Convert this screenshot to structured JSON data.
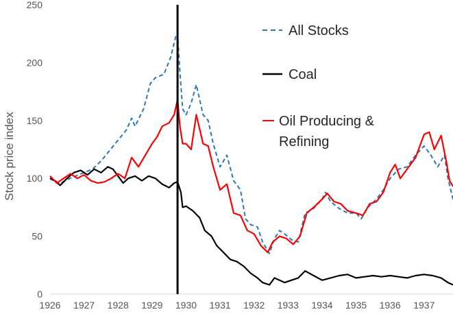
{
  "chart_data": {
    "type": "line",
    "ylabel": "Stock price index",
    "xlabel": "",
    "xlim": [
      1926,
      1937.85
    ],
    "ylim": [
      0,
      250
    ],
    "x_ticks": [
      "1926",
      "1927",
      "1928",
      "1929",
      "1930",
      "1931",
      "1932",
      "1933",
      "1934",
      "1935",
      "1936",
      "1937"
    ],
    "y_ticks": [
      "0",
      "50",
      "100",
      "150",
      "200",
      "250"
    ],
    "grid": false,
    "legend_position": "top-right",
    "vertical_marker_x": 1929.75,
    "series": [
      {
        "name": "All Stocks",
        "color": "#2e75b6",
        "dash": "dashed",
        "points": [
          [
            1926,
            100
          ],
          [
            1926.25,
            95
          ],
          [
            1926.5,
            99
          ],
          [
            1926.75,
            102
          ],
          [
            1927,
            105
          ],
          [
            1927.25,
            108
          ],
          [
            1927.5,
            115
          ],
          [
            1927.75,
            124
          ],
          [
            1928,
            133
          ],
          [
            1928.25,
            142
          ],
          [
            1928.4,
            152
          ],
          [
            1928.5,
            145
          ],
          [
            1928.75,
            160
          ],
          [
            1928.95,
            182
          ],
          [
            1929.1,
            187
          ],
          [
            1929.35,
            190
          ],
          [
            1929.55,
            205
          ],
          [
            1929.7,
            223
          ],
          [
            1929.75,
            225
          ],
          [
            1929.82,
            192
          ],
          [
            1929.9,
            160
          ],
          [
            1930,
            155
          ],
          [
            1930.15,
            165
          ],
          [
            1930.3,
            181
          ],
          [
            1930.5,
            155
          ],
          [
            1930.65,
            150
          ],
          [
            1930.8,
            130
          ],
          [
            1931,
            110
          ],
          [
            1931.2,
            120
          ],
          [
            1931.4,
            98
          ],
          [
            1931.6,
            90
          ],
          [
            1931.75,
            65
          ],
          [
            1931.9,
            60
          ],
          [
            1932.1,
            58
          ],
          [
            1932.25,
            45
          ],
          [
            1932.45,
            35
          ],
          [
            1932.6,
            48
          ],
          [
            1932.75,
            55
          ],
          [
            1932.9,
            52
          ],
          [
            1933.1,
            47
          ],
          [
            1933.3,
            45
          ],
          [
            1933.5,
            70
          ],
          [
            1933.75,
            74
          ],
          [
            1934,
            82
          ],
          [
            1934.1,
            88
          ],
          [
            1934.25,
            80
          ],
          [
            1934.5,
            74
          ],
          [
            1934.75,
            70
          ],
          [
            1935,
            70
          ],
          [
            1935.15,
            65
          ],
          [
            1935.35,
            75
          ],
          [
            1935.6,
            82
          ],
          [
            1935.8,
            90
          ],
          [
            1936,
            100
          ],
          [
            1936.25,
            108
          ],
          [
            1936.5,
            110
          ],
          [
            1936.75,
            120
          ],
          [
            1937,
            128
          ],
          [
            1937.2,
            120
          ],
          [
            1937.4,
            110
          ],
          [
            1937.6,
            120
          ],
          [
            1937.7,
            100
          ],
          [
            1937.85,
            82
          ]
        ]
      },
      {
        "name": "Coal",
        "color": "#000000",
        "dash": "solid",
        "points": [
          [
            1926,
            100
          ],
          [
            1926.15,
            98
          ],
          [
            1926.3,
            94
          ],
          [
            1926.5,
            100
          ],
          [
            1926.7,
            105
          ],
          [
            1926.9,
            107
          ],
          [
            1927.1,
            103
          ],
          [
            1927.3,
            108
          ],
          [
            1927.5,
            105
          ],
          [
            1927.7,
            110
          ],
          [
            1927.85,
            108
          ],
          [
            1928,
            102
          ],
          [
            1928.15,
            96
          ],
          [
            1928.3,
            100
          ],
          [
            1928.5,
            102
          ],
          [
            1928.7,
            98
          ],
          [
            1928.9,
            102
          ],
          [
            1929.1,
            100
          ],
          [
            1929.3,
            95
          ],
          [
            1929.5,
            92
          ],
          [
            1929.65,
            96
          ],
          [
            1929.75,
            97
          ],
          [
            1929.85,
            88
          ],
          [
            1929.9,
            75
          ],
          [
            1930,
            76
          ],
          [
            1930.2,
            72
          ],
          [
            1930.4,
            66
          ],
          [
            1930.55,
            55
          ],
          [
            1930.75,
            50
          ],
          [
            1930.9,
            42
          ],
          [
            1931.1,
            36
          ],
          [
            1931.3,
            30
          ],
          [
            1931.5,
            28
          ],
          [
            1931.7,
            24
          ],
          [
            1931.9,
            18
          ],
          [
            1932.1,
            14
          ],
          [
            1932.25,
            10
          ],
          [
            1932.45,
            8
          ],
          [
            1932.6,
            14
          ],
          [
            1932.75,
            12
          ],
          [
            1932.9,
            10
          ],
          [
            1933.1,
            12
          ],
          [
            1933.3,
            14
          ],
          [
            1933.5,
            20
          ],
          [
            1933.75,
            16
          ],
          [
            1934,
            12
          ],
          [
            1934.25,
            14
          ],
          [
            1934.5,
            16
          ],
          [
            1934.75,
            17
          ],
          [
            1935,
            14
          ],
          [
            1935.25,
            15
          ],
          [
            1935.5,
            16
          ],
          [
            1935.75,
            15
          ],
          [
            1936,
            16
          ],
          [
            1936.25,
            15
          ],
          [
            1936.5,
            14
          ],
          [
            1936.75,
            16
          ],
          [
            1937,
            17
          ],
          [
            1937.25,
            16
          ],
          [
            1937.5,
            14
          ],
          [
            1937.7,
            10
          ],
          [
            1937.85,
            8
          ]
        ]
      },
      {
        "name": "Oil Producing & Refining",
        "color": "#ff0000",
        "dash": "solid",
        "points": [
          [
            1926,
            102
          ],
          [
            1926.2,
            96
          ],
          [
            1926.4,
            100
          ],
          [
            1926.6,
            104
          ],
          [
            1926.8,
            100
          ],
          [
            1927,
            103
          ],
          [
            1927.2,
            98
          ],
          [
            1927.4,
            96
          ],
          [
            1927.6,
            97
          ],
          [
            1927.8,
            100
          ],
          [
            1928,
            104
          ],
          [
            1928.2,
            100
          ],
          [
            1928.4,
            118
          ],
          [
            1928.6,
            110
          ],
          [
            1928.8,
            120
          ],
          [
            1929,
            130
          ],
          [
            1929.15,
            136
          ],
          [
            1929.3,
            145
          ],
          [
            1929.5,
            148
          ],
          [
            1929.65,
            155
          ],
          [
            1929.75,
            168
          ],
          [
            1929.82,
            145
          ],
          [
            1929.9,
            130
          ],
          [
            1930,
            130
          ],
          [
            1930.15,
            125
          ],
          [
            1930.3,
            155
          ],
          [
            1930.5,
            130
          ],
          [
            1930.65,
            128
          ],
          [
            1930.8,
            110
          ],
          [
            1931,
            90
          ],
          [
            1931.2,
            95
          ],
          [
            1931.4,
            70
          ],
          [
            1931.6,
            68
          ],
          [
            1931.8,
            55
          ],
          [
            1932,
            52
          ],
          [
            1932.2,
            42
          ],
          [
            1932.4,
            36
          ],
          [
            1932.55,
            45
          ],
          [
            1932.75,
            50
          ],
          [
            1932.95,
            48
          ],
          [
            1933.15,
            43
          ],
          [
            1933.35,
            50
          ],
          [
            1933.55,
            70
          ],
          [
            1933.75,
            75
          ],
          [
            1934,
            82
          ],
          [
            1934.15,
            87
          ],
          [
            1934.35,
            80
          ],
          [
            1934.55,
            78
          ],
          [
            1934.75,
            72
          ],
          [
            1935,
            70
          ],
          [
            1935.2,
            68
          ],
          [
            1935.4,
            78
          ],
          [
            1935.6,
            80
          ],
          [
            1935.8,
            88
          ],
          [
            1936,
            105
          ],
          [
            1936.15,
            112
          ],
          [
            1936.3,
            100
          ],
          [
            1936.5,
            108
          ],
          [
            1936.75,
            118
          ],
          [
            1937,
            138
          ],
          [
            1937.15,
            140
          ],
          [
            1937.3,
            125
          ],
          [
            1937.5,
            137
          ],
          [
            1937.65,
            115
          ],
          [
            1937.75,
            98
          ],
          [
            1937.85,
            93
          ]
        ]
      }
    ]
  }
}
